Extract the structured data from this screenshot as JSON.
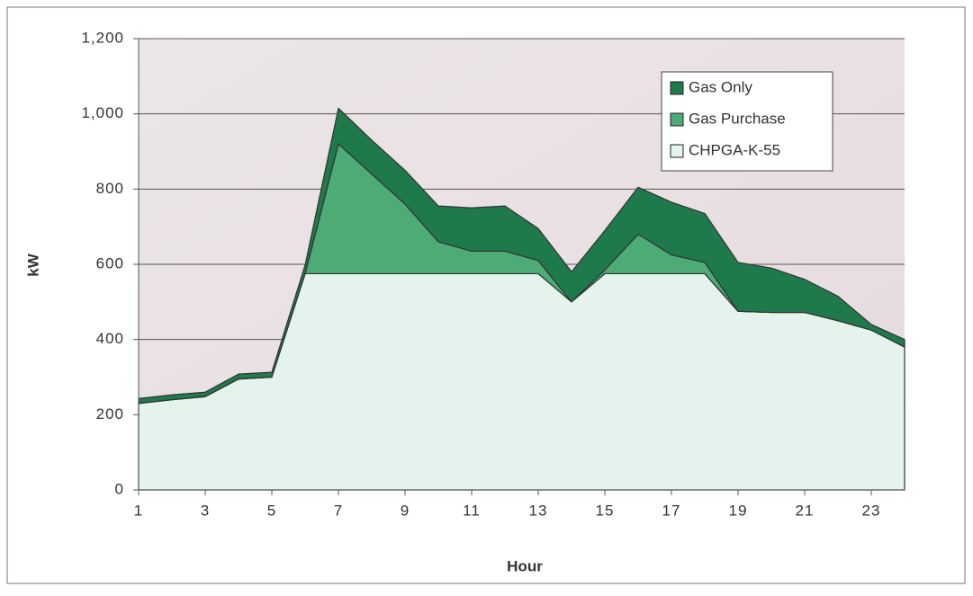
{
  "chart_data": {
    "type": "stacked_area",
    "x_label": "Hour",
    "y_label": "kW",
    "x": [
      1,
      2,
      3,
      4,
      5,
      6,
      7,
      8,
      9,
      10,
      11,
      12,
      13,
      14,
      15,
      16,
      17,
      18,
      19,
      20,
      21,
      22,
      23,
      24
    ],
    "xlim": [
      1,
      24
    ],
    "xticks": [
      1,
      3,
      5,
      7,
      9,
      11,
      13,
      15,
      17,
      19,
      21,
      23
    ],
    "ylim": [
      0,
      1200
    ],
    "yticks": [
      0,
      200,
      400,
      600,
      800,
      {
        "value": 1000,
        "label": "1,000"
      },
      {
        "value": 1200,
        "label": "1,200"
      }
    ],
    "grid": true,
    "legend": "top-right",
    "series": [
      {
        "name": "CHPGA-K-55",
        "color": "#e4f3ec",
        "values": [
          230,
          240,
          248,
          295,
          300,
          575,
          575,
          575,
          575,
          575,
          575,
          575,
          575,
          500,
          575,
          575,
          575,
          575,
          475,
          472,
          472,
          450,
          425,
          380
        ]
      },
      {
        "name": "Gas Purchase",
        "color": "#4dab76",
        "values": [
          0,
          0,
          0,
          0,
          0,
          0,
          345,
          265,
          185,
          85,
          60,
          60,
          35,
          0,
          10,
          105,
          50,
          30,
          0,
          0,
          0,
          0,
          0,
          0
        ]
      },
      {
        "name": "Gas Only",
        "color": "#1f7a4b",
        "values": [
          13,
          13,
          12,
          13,
          13,
          23,
          95,
          90,
          90,
          95,
          115,
          120,
          85,
          80,
          105,
          125,
          140,
          130,
          130,
          118,
          88,
          65,
          15,
          20
        ]
      }
    ]
  }
}
